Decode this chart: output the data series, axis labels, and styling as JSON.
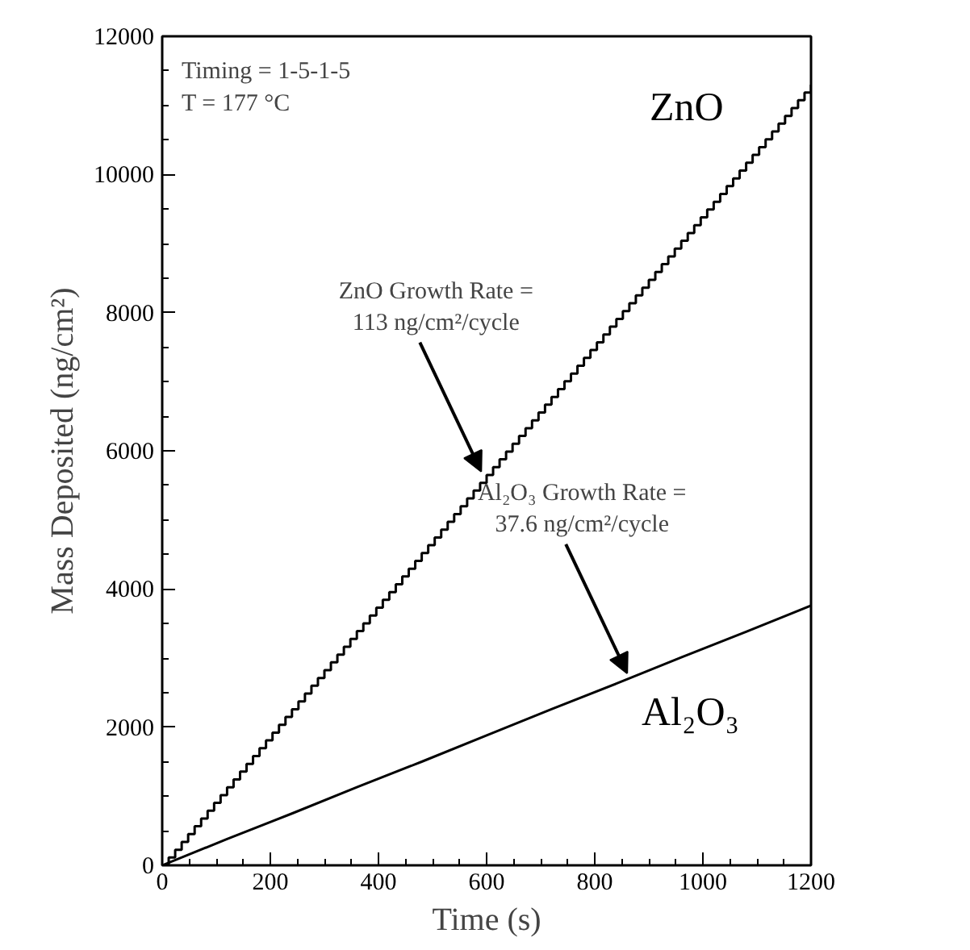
{
  "chart_data": {
    "type": "step",
    "xlabel": "Time (s)",
    "ylabel": "Mass Deposited (ng/cm²)",
    "xlim": [
      0,
      1200
    ],
    "ylim": [
      0,
      12000
    ],
    "xticks": [
      0,
      200,
      400,
      600,
      800,
      1000,
      1200
    ],
    "yticks": [
      0,
      2000,
      4000,
      6000,
      8000,
      10000,
      12000
    ],
    "grid": false,
    "marker": "none",
    "line_style": "solid",
    "annotations": [
      "Timing = 1-5-1-5",
      "T = 177 °C",
      {
        "text": "ZnO Growth Rate =\n113 ng/cm²/cycle",
        "x": 590,
        "y": 5700
      },
      {
        "text": "Al₂O₃ Growth Rate =\n37.6 ng/cm²/cycle",
        "x": 860,
        "y": 2780
      }
    ],
    "series": [
      {
        "name": "ZnO",
        "color": "#000000",
        "x": [
          0,
          12,
          24,
          36,
          48,
          60,
          72,
          84,
          96,
          108,
          120,
          132,
          144,
          156,
          168,
          180,
          192,
          204,
          216,
          228,
          240,
          252,
          264,
          276,
          288,
          300,
          312,
          324,
          336,
          348,
          360,
          372,
          384,
          396,
          408,
          420,
          432,
          444,
          456,
          468,
          480,
          492,
          504,
          516,
          528,
          540,
          552,
          564,
          576,
          588,
          600,
          612,
          624,
          636,
          648,
          660,
          672,
          684,
          696,
          708,
          720,
          732,
          744,
          756,
          768,
          780,
          792,
          804,
          816,
          828,
          840,
          852,
          864,
          876,
          888,
          900,
          912,
          924,
          936,
          948,
          960,
          972,
          984,
          996,
          1008,
          1020,
          1032,
          1044,
          1056,
          1068,
          1080,
          1092,
          1104,
          1116,
          1128,
          1140,
          1152,
          1164,
          1176,
          1188,
          1200
        ],
        "values": [
          0,
          113,
          226,
          339,
          452,
          565,
          678,
          791,
          904,
          1017,
          1130,
          1243,
          1356,
          1469,
          1582,
          1695,
          1808,
          1921,
          2034,
          2147,
          2260,
          2373,
          2486,
          2599,
          2712,
          2825,
          2938,
          3051,
          3164,
          3277,
          3390,
          3503,
          3616,
          3729,
          3842,
          3955,
          4068,
          4181,
          4294,
          4407,
          4520,
          4633,
          4746,
          4859,
          4972,
          5085,
          5198,
          5311,
          5424,
          5537,
          5650,
          5763,
          5876,
          5989,
          6102,
          6215,
          6328,
          6441,
          6554,
          6667,
          6780,
          6893,
          7006,
          7119,
          7232,
          7345,
          7458,
          7571,
          7684,
          7797,
          7910,
          8023,
          8136,
          8249,
          8362,
          8475,
          8588,
          8701,
          8814,
          8927,
          9040,
          9153,
          9266,
          9379,
          9492,
          9605,
          9718,
          9831,
          9944,
          10057,
          10170,
          10283,
          10396,
          10509,
          10622,
          10735,
          10848,
          10961,
          11074,
          11187,
          11300
        ]
      },
      {
        "name": "Al₂O₃",
        "type": "line",
        "color": "#000000",
        "x": [
          0,
          120,
          240,
          360,
          480,
          600,
          720,
          840,
          960,
          1080,
          1200
        ],
        "values": [
          0,
          380,
          750,
          1130,
          1500,
          1880,
          2260,
          2630,
          3010,
          3380,
          3760
        ]
      }
    ]
  }
}
